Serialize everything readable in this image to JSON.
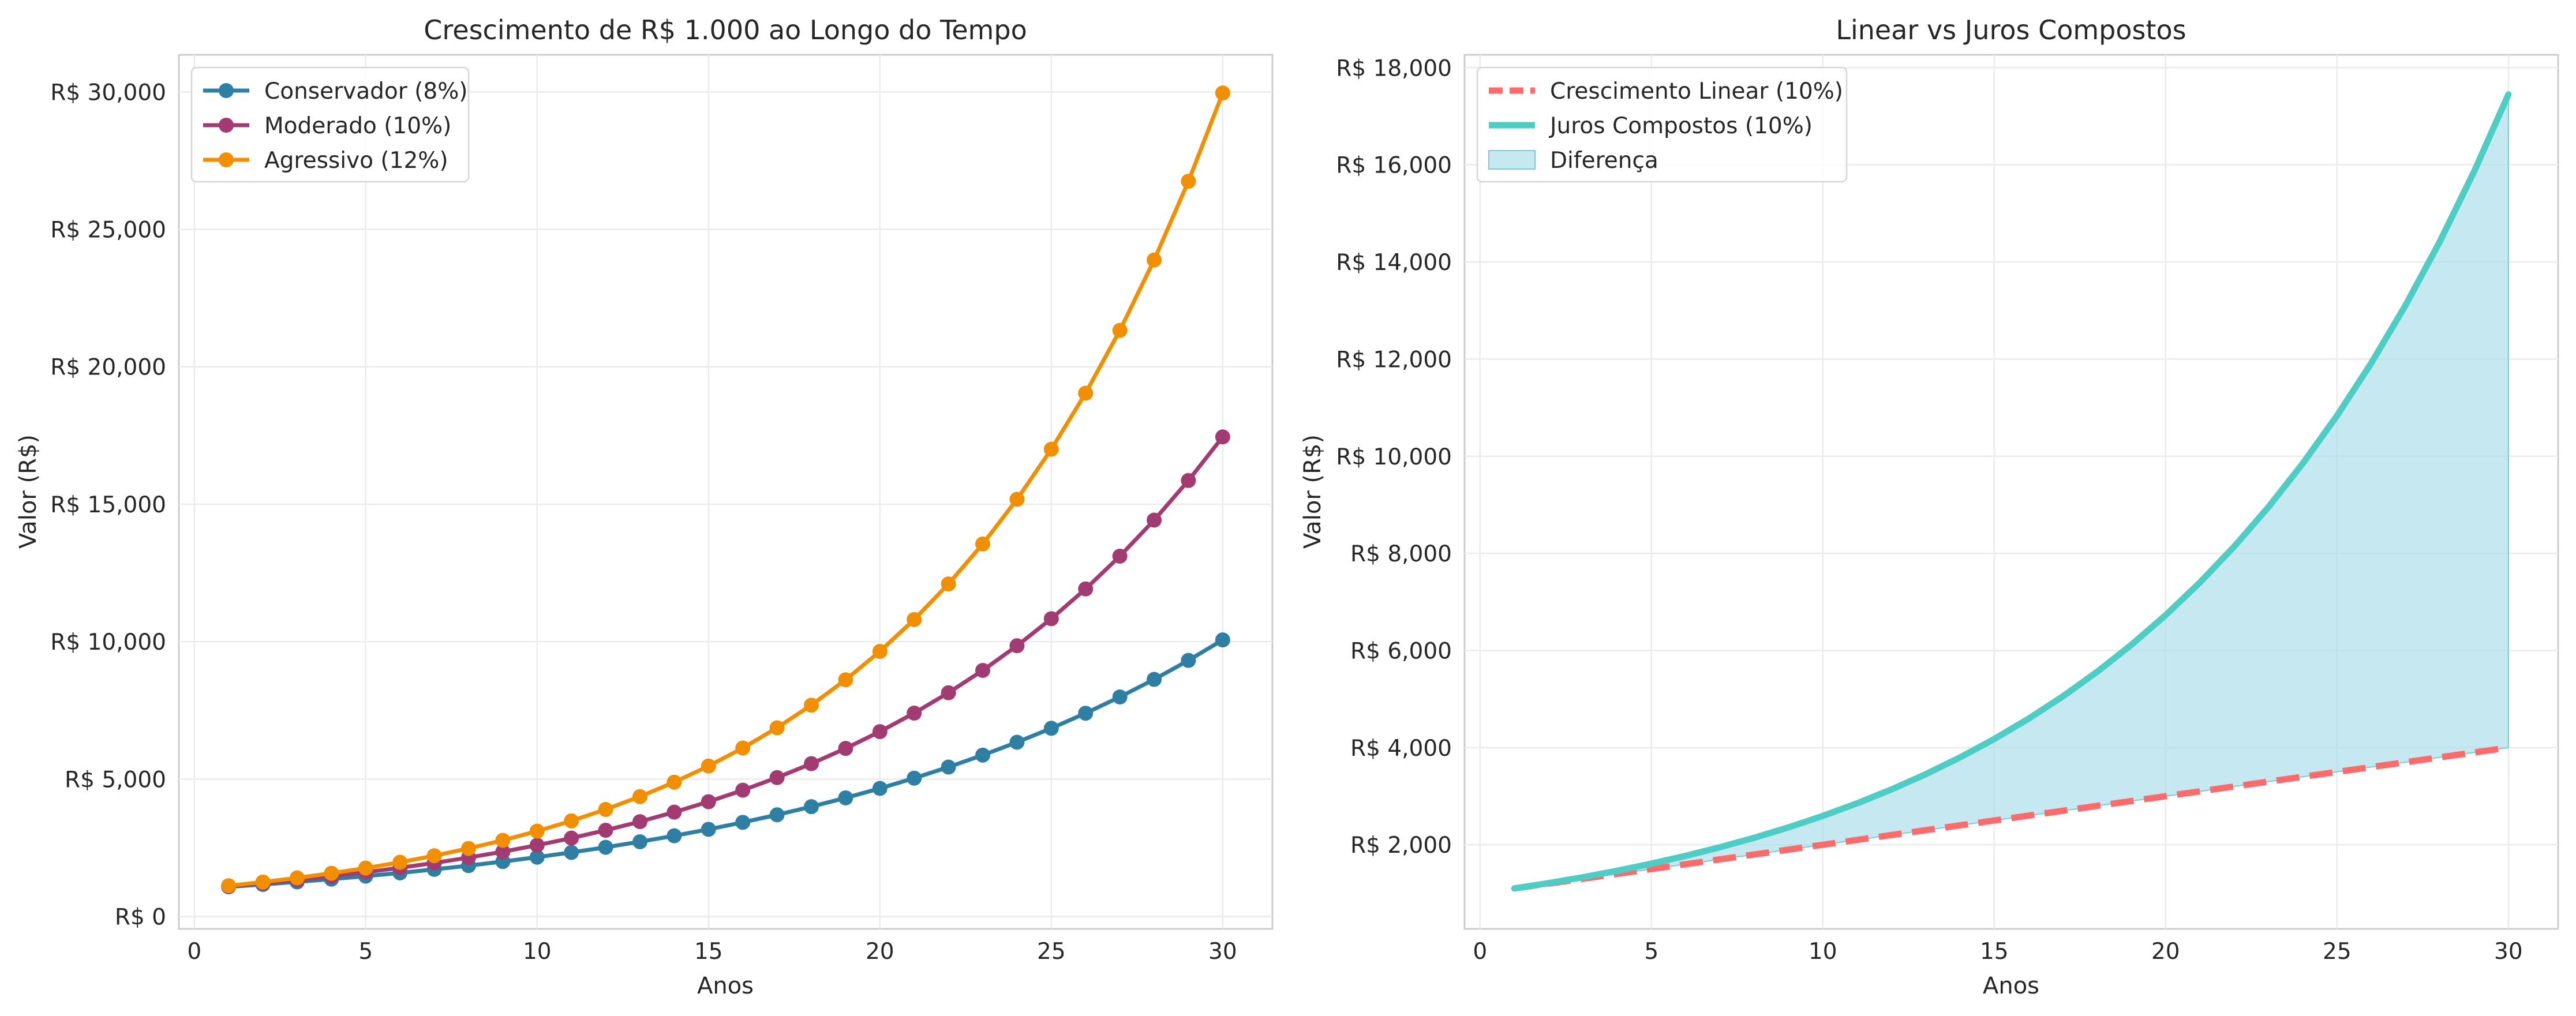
{
  "chart_data": [
    {
      "type": "line",
      "title": "Crescimento de R$ 1.000 ao Longo do Tempo",
      "xlabel": "Anos",
      "ylabel": "Valor (R$)",
      "xlim": [
        -0.45,
        31.45
      ],
      "ylim": [
        -450,
        31350
      ],
      "xticks": [
        0,
        5,
        10,
        15,
        20,
        25,
        30
      ],
      "yticks": [
        0,
        5000,
        10000,
        15000,
        20000,
        25000,
        30000
      ],
      "ytick_labels": [
        "R$ 0",
        "R$ 5,000",
        "R$ 10,000",
        "R$ 15,000",
        "R$ 20,000",
        "R$ 25,000",
        "R$ 30,000"
      ],
      "grid": true,
      "legend": "top-left",
      "x": [
        1,
        2,
        3,
        4,
        5,
        6,
        7,
        8,
        9,
        10,
        11,
        12,
        13,
        14,
        15,
        16,
        17,
        18,
        19,
        20,
        21,
        22,
        23,
        24,
        25,
        26,
        27,
        28,
        29,
        30
      ],
      "series": [
        {
          "name": "Conservador (8%)",
          "color": "#2e7fa3",
          "marker": "circle",
          "values": [
            1080,
            1166,
            1260,
            1360,
            1469,
            1587,
            1714,
            1851,
            1999,
            2159,
            2332,
            2518,
            2720,
            2937,
            3172,
            3426,
            3700,
            3996,
            4316,
            4661,
            5034,
            5437,
            5871,
            6341,
            6848,
            7396,
            7988,
            8627,
            9317,
            10063
          ]
        },
        {
          "name": "Moderado (10%)",
          "color": "#a23b72",
          "marker": "circle",
          "values": [
            1100,
            1210,
            1331,
            1464,
            1611,
            1772,
            1949,
            2144,
            2358,
            2594,
            2853,
            3138,
            3452,
            3797,
            4177,
            4595,
            5054,
            5560,
            6116,
            6727,
            7400,
            8140,
            8954,
            9850,
            10835,
            11918,
            13110,
            14421,
            15863,
            17449
          ]
        },
        {
          "name": "Agressivo (12%)",
          "color": "#f18f01",
          "marker": "circle",
          "values": [
            1120,
            1254,
            1405,
            1574,
            1762,
            1974,
            2211,
            2476,
            2773,
            3106,
            3479,
            3896,
            4363,
            4887,
            5474,
            6130,
            6866,
            7690,
            8613,
            9646,
            10804,
            12100,
            13552,
            15179,
            17000,
            19040,
            21325,
            23884,
            26750,
            29960
          ]
        }
      ]
    },
    {
      "type": "line",
      "title": "Linear vs Juros Compostos",
      "xlabel": "Anos",
      "ylabel": "Valor (R$)",
      "xlim": [
        -0.45,
        31.45
      ],
      "ylim": [
        268,
        18265
      ],
      "xticks": [
        0,
        5,
        10,
        15,
        20,
        25,
        30
      ],
      "yticks": [
        2000,
        4000,
        6000,
        8000,
        10000,
        12000,
        14000,
        16000,
        18000
      ],
      "ytick_labels": [
        "R$ 2,000",
        "R$ 4,000",
        "R$ 6,000",
        "R$ 8,000",
        "R$ 10,000",
        "R$ 12,000",
        "R$ 14,000",
        "R$ 16,000",
        "R$ 18,000"
      ],
      "grid": true,
      "legend": "top-left",
      "x": [
        1,
        2,
        3,
        4,
        5,
        6,
        7,
        8,
        9,
        10,
        11,
        12,
        13,
        14,
        15,
        16,
        17,
        18,
        19,
        20,
        21,
        22,
        23,
        24,
        25,
        26,
        27,
        28,
        29,
        30
      ],
      "series": [
        {
          "name": "Crescimento Linear (10%)",
          "color": "#ff6b6b",
          "style": "dashed",
          "values": [
            1100,
            1200,
            1300,
            1400,
            1500,
            1600,
            1700,
            1800,
            1900,
            2000,
            2100,
            2200,
            2300,
            2400,
            2500,
            2600,
            2700,
            2800,
            2900,
            3000,
            3100,
            3200,
            3300,
            3400,
            3500,
            3600,
            3700,
            3800,
            3900,
            4000
          ]
        },
        {
          "name": "Juros Compostos (10%)",
          "color": "#4ecdc4",
          "style": "solid",
          "values": [
            1100,
            1210,
            1331,
            1464,
            1611,
            1772,
            1949,
            2144,
            2358,
            2594,
            2853,
            3138,
            3452,
            3797,
            4177,
            4595,
            5054,
            5560,
            6116,
            6727,
            7400,
            8140,
            8954,
            9850,
            10835,
            11918,
            13110,
            14421,
            15863,
            17449
          ]
        }
      ],
      "fill_between": {
        "name": "Diferença",
        "color": "#a8dce8"
      }
    }
  ]
}
